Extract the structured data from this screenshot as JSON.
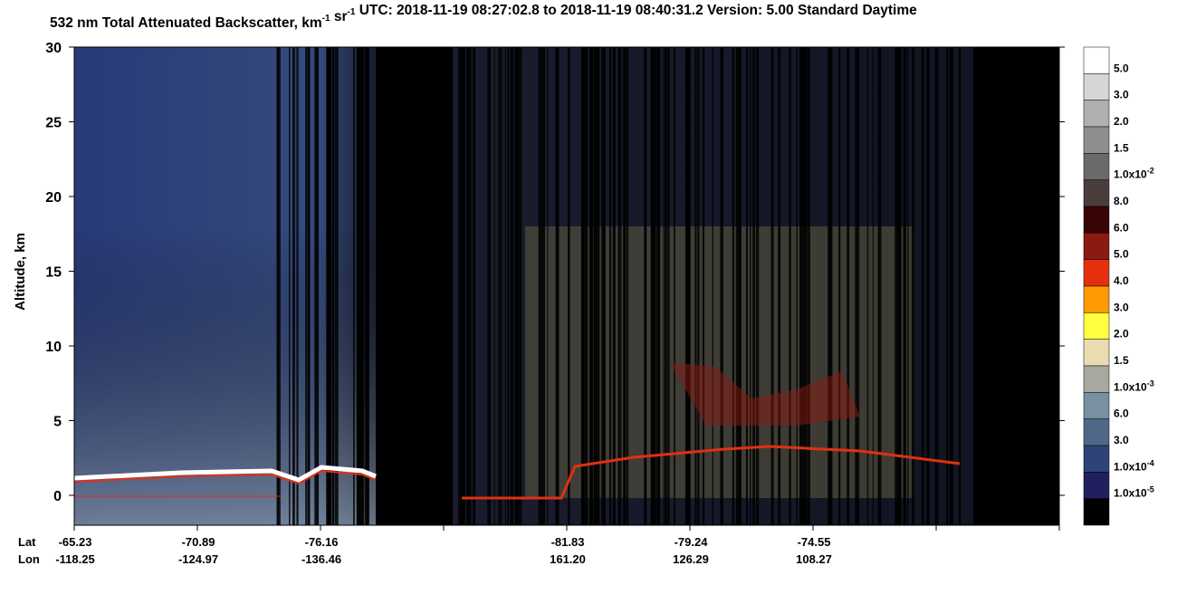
{
  "chart_data": {
    "type": "curtain",
    "title_parts": [
      {
        "text": "532 nm Total Attenuated Backscatter, km"
      },
      {
        "sup": "-1"
      },
      {
        "text": " sr"
      },
      {
        "sup": "-1"
      },
      {
        "text": "    UTC:  2018-11-19 08:27:02.8  to  2018-11-19 08:40:31.2    Version: 5.00  Standard  Daytime"
      }
    ],
    "y_label": "Altitude, km",
    "ylim": [
      -2,
      30
    ],
    "yticks": [
      0,
      5,
      10,
      15,
      20,
      25,
      30
    ],
    "x_label_lat": "Lat",
    "x_label_lon": "Lon",
    "xtick_lat": [
      "-65.23",
      "-70.89",
      "-76.16",
      null,
      "-81.83",
      "-79.24",
      "-74.55",
      null,
      null
    ],
    "xtick_lon": [
      "-118.25",
      "-124.97",
      "-136.46",
      null,
      "161.20",
      "126.29",
      "108.27",
      null,
      null
    ],
    "colorbar": [
      {
        "color": "#ffffff",
        "label": "5.0"
      },
      {
        "color": "#d6d6d6",
        "label": "3.0"
      },
      {
        "color": "#b0b0b0",
        "label": "2.0"
      },
      {
        "color": "#8e8e8e",
        "label": "1.5"
      },
      {
        "color": "#6a6a6a",
        "label": "1.0x10",
        "exponent": "-2"
      },
      {
        "color": "#4a3e3c",
        "label": "8.0"
      },
      {
        "color": "#380404",
        "label": "6.0"
      },
      {
        "color": "#8c1a12",
        "label": "5.0"
      },
      {
        "color": "#e4300e",
        "label": "4.0"
      },
      {
        "color": "#ff9a00",
        "label": "3.0"
      },
      {
        "color": "#ffff40",
        "label": "2.0"
      },
      {
        "color": "#eadcb0",
        "label": "1.5"
      },
      {
        "color": "#a8a8a0",
        "label": "1.0x10",
        "exponent": "-3"
      },
      {
        "color": "#7890a0",
        "label": "6.0"
      },
      {
        "color": "#506888",
        "label": "3.0"
      },
      {
        "color": "#2e4478",
        "label": "1.0x10",
        "exponent": "-4"
      },
      {
        "color": "#20205e",
        "label": "1.0x10",
        "exponent": "-5"
      },
      {
        "color": "#000000"
      }
    ]
  }
}
